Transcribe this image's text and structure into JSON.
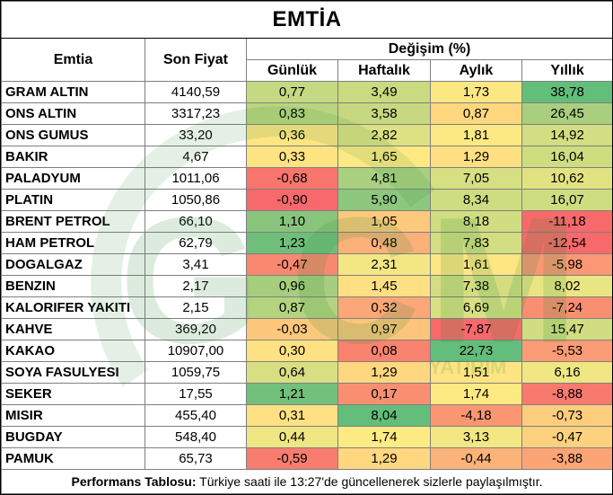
{
  "title": "EMTİA",
  "headers": {
    "commodity": "Emtia",
    "last_price": "Son Fiyat",
    "change": "Değişim (%)",
    "daily": "Günlük",
    "weekly": "Haftalık",
    "monthly": "Aylık",
    "yearly": "Yıllık"
  },
  "rows": [
    {
      "name": "GRAM ALTIN",
      "price": "4140,59",
      "daily": "0,77",
      "weekly": "3,49",
      "monthly": "1,73",
      "yearly": "38,78",
      "colors": [
        "#c4d982",
        "#c9da80",
        "#fde783",
        "#63be7b"
      ]
    },
    {
      "name": "ONS ALTIN",
      "price": "3317,23",
      "daily": "0,83",
      "weekly": "3,58",
      "monthly": "0,87",
      "yearly": "26,45",
      "colors": [
        "#bad57f",
        "#c6d980",
        "#fed77f",
        "#a9cf7e"
      ]
    },
    {
      "name": "ONS GUMUS",
      "price": "33,20",
      "daily": "0,36",
      "weekly": "2,82",
      "monthly": "1,81",
      "yearly": "14,92",
      "colors": [
        "#fee582",
        "#dde182",
        "#fde983",
        "#d2de81"
      ]
    },
    {
      "name": "BAKIR",
      "price": "4,67",
      "daily": "0,33",
      "weekly": "1,65",
      "monthly": "1,29",
      "yearly": "16,04",
      "colors": [
        "#fee382",
        "#fee983",
        "#fedf81",
        "#cfdd81"
      ]
    },
    {
      "name": "PALADYUM",
      "price": "1011,06",
      "daily": "-0,68",
      "weekly": "4,81",
      "monthly": "7,05",
      "yearly": "10,62",
      "colors": [
        "#f8766d",
        "#a9d07f",
        "#d6df81",
        "#e2e282"
      ]
    },
    {
      "name": "PLATIN",
      "price": "1050,86",
      "daily": "-0,90",
      "weekly": "5,90",
      "monthly": "8,34",
      "yearly": "16,07",
      "colors": [
        "#f8696b",
        "#8ec77e",
        "#cfdd81",
        "#cfdd81"
      ]
    },
    {
      "name": "BRENT PETROL",
      "price": "66,10",
      "daily": "1,10",
      "weekly": "1,05",
      "monthly": "8,18",
      "yearly": "-11,18",
      "colors": [
        "#89c47c",
        "#fdca7c",
        "#d0dd81",
        "#f8696b"
      ]
    },
    {
      "name": "HAM PETROL",
      "price": "62,79",
      "daily": "1,23",
      "weekly": "0,48",
      "monthly": "7,83",
      "yearly": "-12,54",
      "colors": [
        "#6fbf7b",
        "#fcb179",
        "#d2de81",
        "#f8696b"
      ]
    },
    {
      "name": "DOGALGAZ",
      "price": "3,41",
      "daily": "-0,47",
      "weekly": "2,31",
      "monthly": "1,61",
      "yearly": "-5,98",
      "colors": [
        "#f98870",
        "#f2e783",
        "#fee683",
        "#fa9874"
      ]
    },
    {
      "name": "BENZIN",
      "price": "2,17",
      "daily": "0,96",
      "weekly": "1,45",
      "monthly": "7,38",
      "yearly": "8,02",
      "colors": [
        "#a6ce7e",
        "#fee083",
        "#d4de81",
        "#eae583"
      ]
    },
    {
      "name": "KALORIFER YAKITI",
      "price": "2,15",
      "daily": "0,87",
      "weekly": "0,32",
      "monthly": "6,69",
      "yearly": "-7,24",
      "colors": [
        "#b3d37f",
        "#fba777",
        "#d9e082",
        "#f98f71"
      ]
    },
    {
      "name": "KAHVE",
      "price": "369,20",
      "daily": "-0,03",
      "weekly": "0,97",
      "monthly": "-7,87",
      "yearly": "15,47",
      "colors": [
        "#fdc77c",
        "#fdc57b",
        "#f8696b",
        "#d0dd81"
      ]
    },
    {
      "name": "KAKAO",
      "price": "10907,00",
      "daily": "0,30",
      "weekly": "0,08",
      "monthly": "22,73",
      "yearly": "-5,53",
      "colors": [
        "#fee182",
        "#f9836f",
        "#63be7b",
        "#fa9c75"
      ]
    },
    {
      "name": "SOYA FASULYESI",
      "price": "1059,75",
      "daily": "0,64",
      "weekly": "1,29",
      "monthly": "1,51",
      "yearly": "6,16",
      "colors": [
        "#d7df82",
        "#fed780",
        "#fee482",
        "#f0e683"
      ]
    },
    {
      "name": "SEKER",
      "price": "17,55",
      "daily": "1,21",
      "weekly": "0,17",
      "monthly": "1,74",
      "yearly": "-8,88",
      "colors": [
        "#72c07b",
        "#f98f71",
        "#fee983",
        "#f8796e"
      ]
    },
    {
      "name": "MISIR",
      "price": "455,40",
      "daily": "0,31",
      "weekly": "8,04",
      "monthly": "-4,18",
      "yearly": "-0,73",
      "colors": [
        "#fee182",
        "#63be7b",
        "#fa9672",
        "#fdcd7e"
      ]
    },
    {
      "name": "BUGDAY",
      "price": "548,40",
      "daily": "0,44",
      "weekly": "1,74",
      "monthly": "3,13",
      "yearly": "-0,47",
      "colors": [
        "#f0e683",
        "#fdeb84",
        "#f2e783",
        "#fed17e"
      ]
    },
    {
      "name": "PAMUK",
      "price": "65,73",
      "daily": "-0,59",
      "weekly": "1,29",
      "monthly": "-0,44",
      "yearly": "-3,88",
      "colors": [
        "#f87d6e",
        "#fed780",
        "#fbb379",
        "#fba576"
      ]
    }
  ],
  "footer": {
    "label": "Performans Tablosu:",
    "text": " Türkiye saati ile 13:27'de güncellenerek sizlerle paylaşılmıştır."
  },
  "watermark": {
    "letters": [
      "G",
      "C",
      "M"
    ],
    "sub": "YATIRIM",
    "color": "#2e8b3a"
  }
}
